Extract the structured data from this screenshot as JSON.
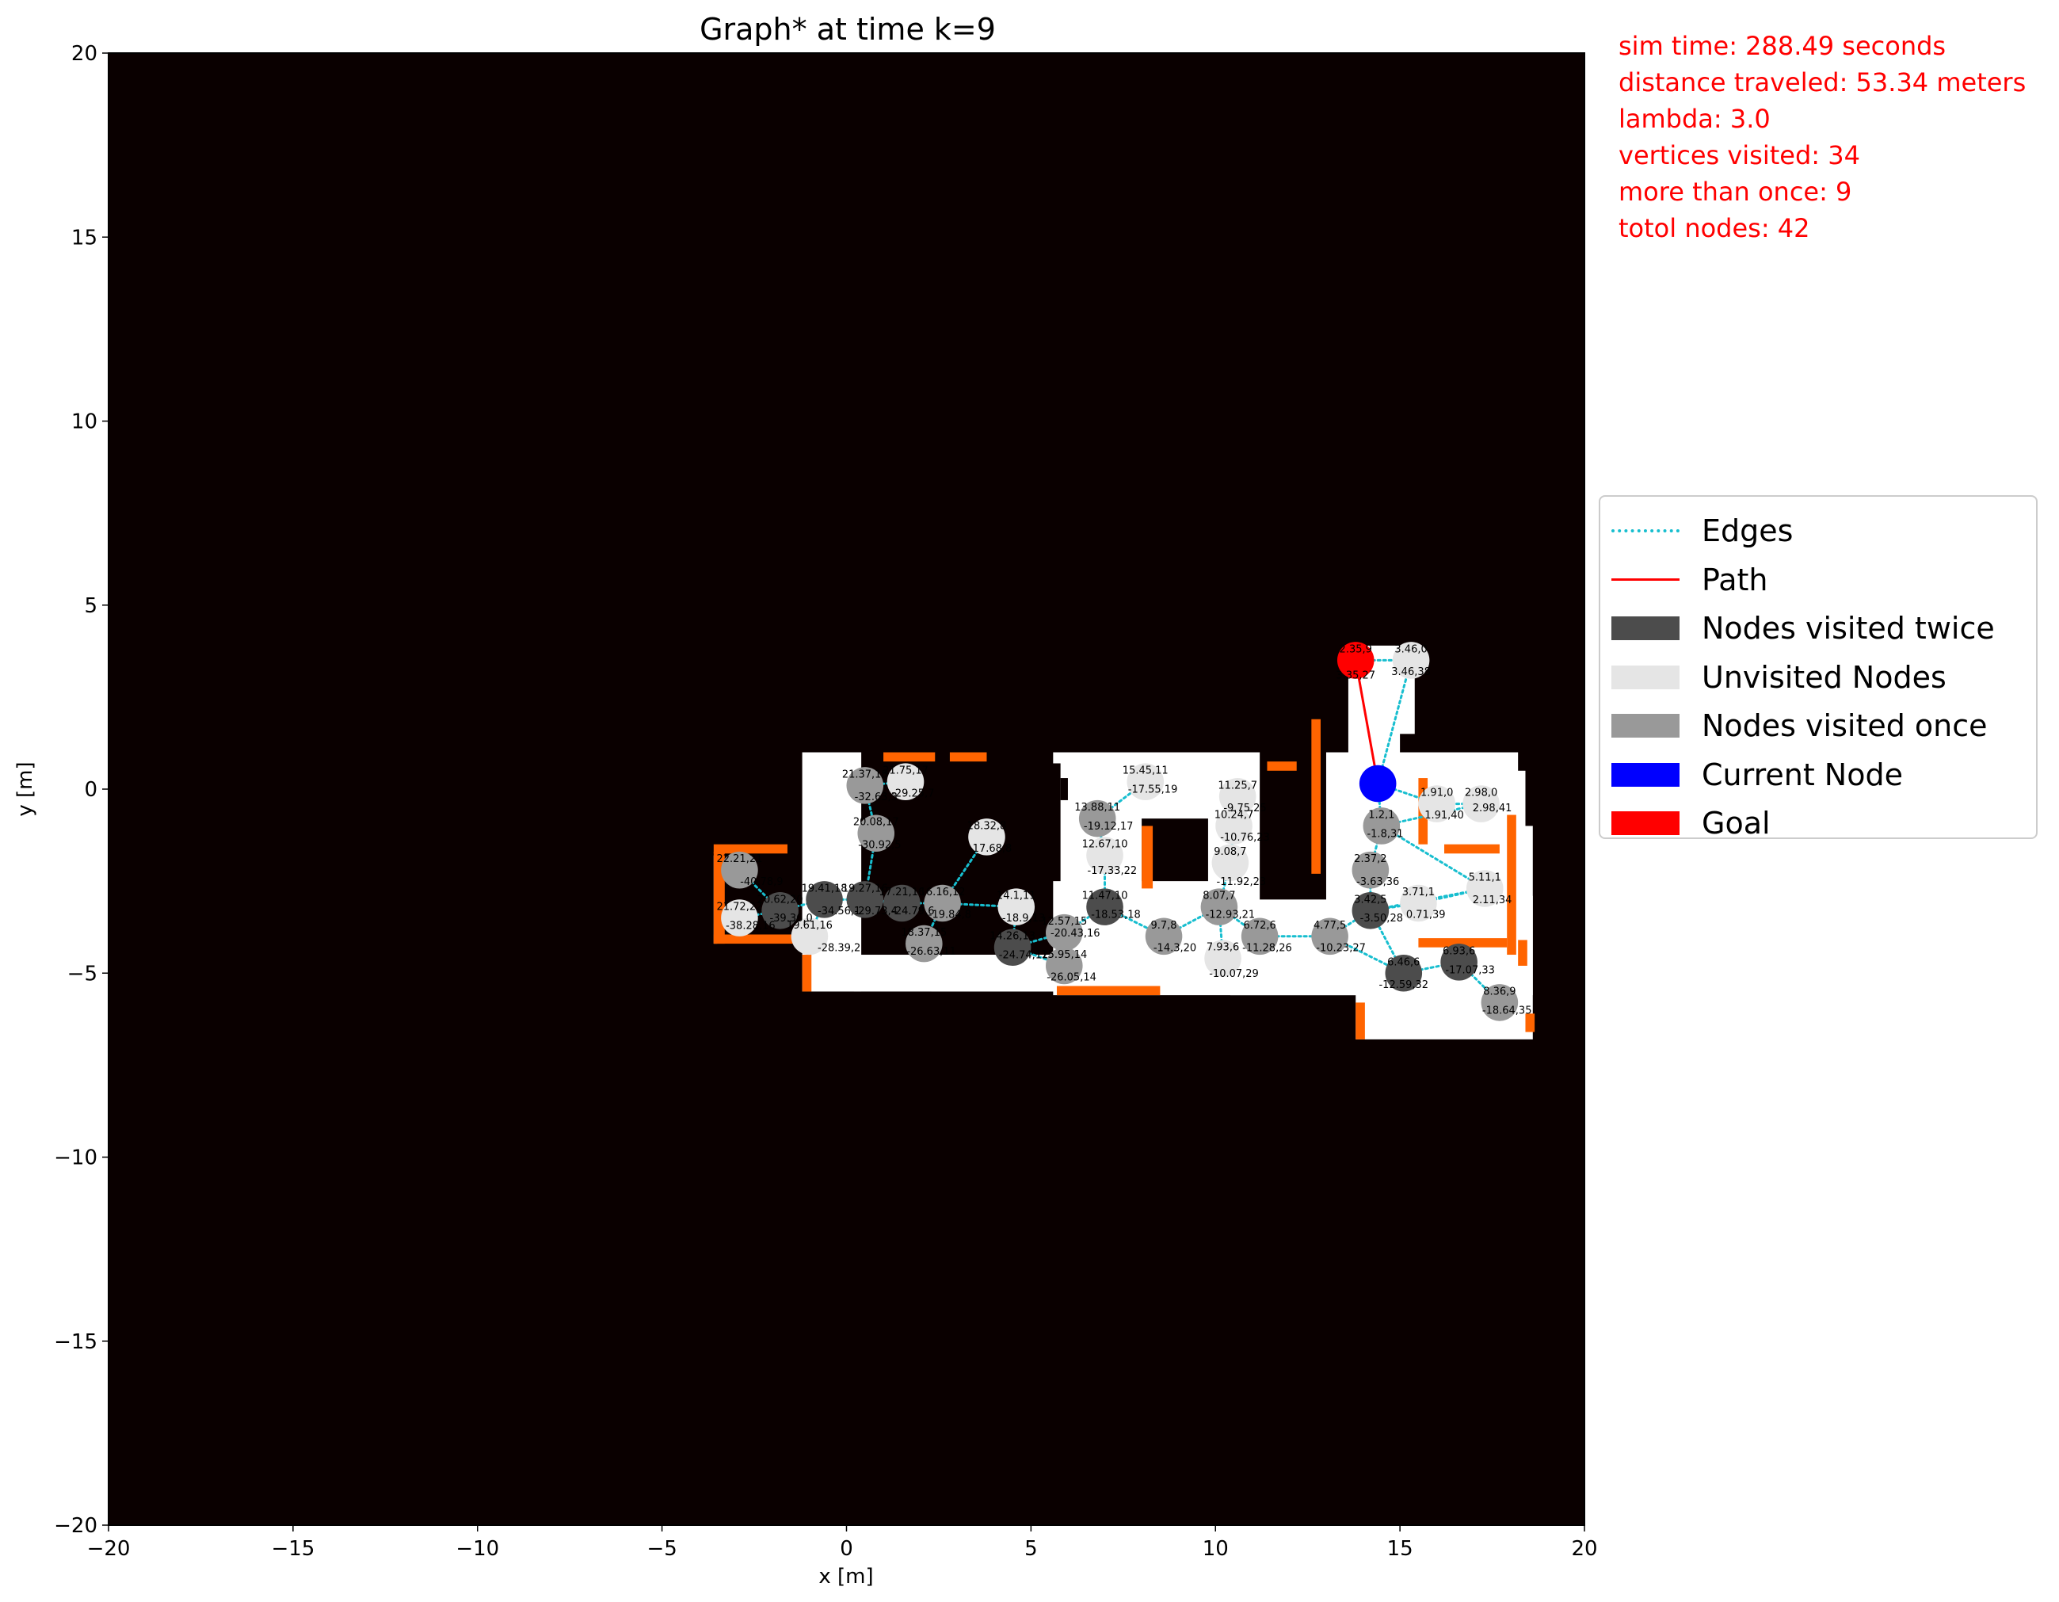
{
  "info": {
    "sim_time": "sim time: 288.49 seconds",
    "distance": "distance traveled: 53.34 meters",
    "lambda": "lambda: 3.0",
    "vertices_visited": "vertices visited: 34",
    "more_than_once": "more than once: 9",
    "total_nodes": "totol nodes: 42"
  },
  "colors": {
    "background": "#0a0000",
    "free_space": "#ffffff",
    "frontier": "#ff6400",
    "edge": "#17becf",
    "path": "#ff0000",
    "twice": "#4c4c4c",
    "unvisited": "#e5e5e5",
    "once": "#999999",
    "current": "#0000ff",
    "goal": "#ff0000"
  },
  "legend": [
    {
      "label": "Edges",
      "kind": "dotted",
      "color": "#17becf"
    },
    {
      "label": "Path",
      "kind": "line",
      "color": "#ff0000"
    },
    {
      "label": "Nodes visited twice",
      "kind": "patch",
      "color": "#4c4c4c"
    },
    {
      "label": "Unvisited Nodes",
      "kind": "patch",
      "color": "#e5e5e5"
    },
    {
      "label": "Nodes visited once",
      "kind": "patch",
      "color": "#999999"
    },
    {
      "label": "Current Node",
      "kind": "patch",
      "color": "#0000ff"
    },
    {
      "label": "Goal",
      "kind": "patch",
      "color": "#ff0000"
    }
  ],
  "chart_data": {
    "type": "scatter",
    "title": "Graph* at time k=9",
    "xlabel": "x [m]",
    "ylabel": "y [m]",
    "xlim": [
      -20,
      20
    ],
    "ylim": [
      -20,
      20
    ],
    "xticks": [
      "−20",
      "−15",
      "−10",
      "−5",
      "0",
      "5",
      "10",
      "15",
      "20"
    ],
    "yticks": [
      "20",
      "15",
      "10",
      "5",
      "0",
      "−5",
      "−10",
      "−15",
      "−20"
    ],
    "free_regions": [
      [
        -3.6,
        -4.2,
        0.1,
        2.4
      ],
      [
        -1.2,
        -5.5,
        1.6,
        6.5
      ],
      [
        0.2,
        -5.5,
        6.2,
        1.0
      ],
      [
        2.3,
        -5.5,
        4.2,
        1.0
      ],
      [
        5.6,
        -5.6,
        12.6,
        6.6
      ],
      [
        10.4,
        -5.6,
        5.6,
        5.2
      ],
      [
        13.8,
        -6.8,
        4.8,
        3.9
      ],
      [
        15.6,
        -5.6,
        3.0,
        4.6
      ],
      [
        13.6,
        -2.0,
        1.4,
        5.8
      ],
      [
        14.0,
        1.5,
        1.4,
        2.4
      ],
      [
        15.2,
        -1.5,
        3.2,
        2.0
      ],
      [
        16.5,
        -4.3,
        1.9,
        2.5
      ]
    ],
    "obstacles": [
      [
        2.0,
        -2.1,
        1.0,
        3.0
      ],
      [
        4.3,
        -2.5,
        1.5,
        3.2
      ],
      [
        8.0,
        -2.5,
        1.8,
        1.7
      ],
      [
        11.2,
        -3.0,
        1.8,
        4.2
      ],
      [
        5.8,
        -0.3,
        0.2,
        0.6
      ]
    ],
    "frontiers": [
      [
        -3.6,
        -4.2,
        0.3,
        2.5
      ],
      [
        -3.6,
        -1.75,
        2.0,
        0.25
      ],
      [
        -3.6,
        -4.2,
        2.5,
        0.25
      ],
      [
        -1.2,
        -5.5,
        0.25,
        1.0
      ],
      [
        1.0,
        0.75,
        1.4,
        0.25
      ],
      [
        2.8,
        0.75,
        1.0,
        0.25
      ],
      [
        5.7,
        -5.6,
        2.8,
        0.25
      ],
      [
        8.0,
        -2.7,
        0.3,
        1.7
      ],
      [
        11.4,
        0.5,
        0.8,
        0.25
      ],
      [
        12.6,
        -2.3,
        0.25,
        4.2
      ],
      [
        13.8,
        -6.8,
        0.25,
        1.0
      ],
      [
        15.5,
        -1.5,
        0.25,
        1.8
      ],
      [
        16.2,
        -1.75,
        1.5,
        0.25
      ],
      [
        17.9,
        -4.5,
        0.25,
        3.8
      ],
      [
        15.5,
        -4.3,
        2.4,
        0.25
      ],
      [
        18.4,
        -6.6,
        0.25,
        0.5
      ],
      [
        18.2,
        -4.8,
        0.25,
        0.7
      ]
    ],
    "nodes": [
      {
        "id": 0,
        "x": 17.2,
        "y": -0.4,
        "label": "2.98,0",
        "state": "unvisited"
      },
      {
        "id": 1,
        "x": 17.3,
        "y": -2.7,
        "label": "5.11,1",
        "state": "unvisited"
      },
      {
        "id": 2,
        "x": -1.0,
        "y": -4.0,
        "label": "19.61,16",
        "state": "unvisited"
      },
      {
        "id": 3,
        "x": -2.9,
        "y": -2.2,
        "label": "22.21,21",
        "state": "once"
      },
      {
        "id": 4,
        "x": -1.8,
        "y": -3.3,
        "label": "20.62,20",
        "state": "twice"
      },
      {
        "id": 5,
        "x": -2.9,
        "y": -3.5,
        "label": "21.72,22",
        "state": "unvisited"
      },
      {
        "id": 6,
        "x": -0.6,
        "y": -3.0,
        "label": "19.41,18",
        "state": "twice"
      },
      {
        "id": 7,
        "x": 0.5,
        "y": 0.1,
        "label": "21.37,18",
        "state": "once"
      },
      {
        "id": 8,
        "x": 1.6,
        "y": 0.2,
        "label": "21.75,17",
        "state": "unvisited"
      },
      {
        "id": 9,
        "x": 0.8,
        "y": -1.2,
        "label": "20.08,17",
        "state": "once"
      },
      {
        "id": 10,
        "x": 0.5,
        "y": -3.0,
        "label": "19.27,16",
        "state": "twice"
      },
      {
        "id": 11,
        "x": 1.5,
        "y": -3.1,
        "label": "17.21,16",
        "state": "twice"
      },
      {
        "id": 12,
        "x": 2.6,
        "y": -3.1,
        "label": "16.16,12",
        "state": "once"
      },
      {
        "id": 13,
        "x": 2.1,
        "y": -4.2,
        "label": "18.37,15",
        "state": "once"
      },
      {
        "id": 14,
        "x": 3.8,
        "y": -1.3,
        "label": "18.32,8",
        "state": "unvisited"
      },
      {
        "id": 15,
        "x": 4.6,
        "y": -3.2,
        "label": "14.1,11",
        "state": "unvisited"
      },
      {
        "id": 16,
        "x": 4.5,
        "y": -4.3,
        "label": "14.26,13",
        "state": "twice"
      },
      {
        "id": 17,
        "x": 5.9,
        "y": -4.8,
        "label": "15.95,14",
        "state": "once"
      },
      {
        "id": 18,
        "x": 5.9,
        "y": -3.9,
        "label": "12.57,15",
        "state": "once"
      },
      {
        "id": 19,
        "x": 7.0,
        "y": -3.2,
        "label": "11.47,10",
        "state": "twice"
      },
      {
        "id": 20,
        "x": 7.0,
        "y": -1.8,
        "label": "12.67,10",
        "state": "unvisited"
      },
      {
        "id": 21,
        "x": 6.8,
        "y": -0.8,
        "label": "13.88,11",
        "state": "once"
      },
      {
        "id": 22,
        "x": 8.1,
        "y": 0.2,
        "label": "15.45,11",
        "state": "unvisited"
      },
      {
        "id": 23,
        "x": 8.6,
        "y": -4.0,
        "label": "9.7,8",
        "state": "once"
      },
      {
        "id": 24,
        "x": 10.1,
        "y": -3.2,
        "label": "8.07,7",
        "state": "once"
      },
      {
        "id": 25,
        "x": 10.2,
        "y": -4.6,
        "label": "7.93,6",
        "state": "unvisited"
      },
      {
        "id": 26,
        "x": 10.6,
        "y": -0.2,
        "label": "11.25,7",
        "state": "unvisited"
      },
      {
        "id": 27,
        "x": 10.5,
        "y": -1.0,
        "label": "10.24,7",
        "state": "unvisited"
      },
      {
        "id": 28,
        "x": 10.4,
        "y": -2.0,
        "label": "9.08,7",
        "state": "unvisited"
      },
      {
        "id": 29,
        "x": 11.2,
        "y": -4.0,
        "label": "6.72,6",
        "state": "once"
      },
      {
        "id": 30,
        "x": 13.1,
        "y": -4.0,
        "label": "4.77,5",
        "state": "once"
      },
      {
        "id": 31,
        "x": 14.2,
        "y": -3.3,
        "label": "3.42,5",
        "state": "twice"
      },
      {
        "id": 32,
        "x": 14.2,
        "y": -2.2,
        "label": "2.37,2",
        "state": "once"
      },
      {
        "id": 33,
        "x": 14.5,
        "y": -1.0,
        "label": "1.2,1",
        "state": "once"
      },
      {
        "id": 34,
        "x": 14.4,
        "y": 0.15,
        "label": "",
        "state": "current"
      },
      {
        "id": 35,
        "x": 13.8,
        "y": 3.5,
        "label": "2.35,9",
        "state": "goal"
      },
      {
        "id": 36,
        "x": 15.3,
        "y": 3.5,
        "label": "3.46,0",
        "state": "unvisited"
      },
      {
        "id": 37,
        "x": 16.0,
        "y": -0.4,
        "label": "1.91,0",
        "state": "unvisited"
      },
      {
        "id": 38,
        "x": 15.5,
        "y": -3.1,
        "label": "3.71,1",
        "state": "unvisited"
      },
      {
        "id": 39,
        "x": 15.1,
        "y": -5.0,
        "label": "6.46,6",
        "state": "twice"
      },
      {
        "id": 40,
        "x": 16.6,
        "y": -4.7,
        "label": "6.93,6",
        "state": "twice"
      },
      {
        "id": 41,
        "x": 17.7,
        "y": -5.8,
        "label": "8.36,9",
        "state": "once"
      }
    ],
    "edges": [
      [
        0,
        33
      ],
      [
        0,
        37
      ],
      [
        1,
        33
      ],
      [
        1,
        38
      ],
      [
        1,
        31
      ],
      [
        2,
        6
      ],
      [
        3,
        4
      ],
      [
        4,
        5
      ],
      [
        4,
        6
      ],
      [
        6,
        10
      ],
      [
        6,
        2
      ],
      [
        7,
        8
      ],
      [
        7,
        9
      ],
      [
        9,
        10
      ],
      [
        10,
        11
      ],
      [
        11,
        12
      ],
      [
        12,
        13
      ],
      [
        12,
        14
      ],
      [
        12,
        15
      ],
      [
        15,
        16
      ],
      [
        16,
        17
      ],
      [
        16,
        18
      ],
      [
        18,
        19
      ],
      [
        19,
        20
      ],
      [
        20,
        21
      ],
      [
        21,
        22
      ],
      [
        19,
        23
      ],
      [
        23,
        24
      ],
      [
        24,
        25
      ],
      [
        24,
        28
      ],
      [
        28,
        27
      ],
      [
        27,
        26
      ],
      [
        24,
        29
      ],
      [
        29,
        30
      ],
      [
        30,
        31
      ],
      [
        31,
        32
      ],
      [
        32,
        33
      ],
      [
        33,
        34
      ],
      [
        34,
        36
      ],
      [
        35,
        36
      ],
      [
        31,
        38
      ],
      [
        30,
        39
      ],
      [
        39,
        40
      ],
      [
        40,
        41
      ],
      [
        39,
        31
      ],
      [
        34,
        37
      ],
      [
        11,
        10
      ]
    ],
    "path": [
      [
        14.4,
        0.15
      ],
      [
        13.8,
        3.5
      ]
    ],
    "extra_labels": [
      {
        "x": 0.8,
        "y": -0.3,
        "text": "-32.63,3"
      },
      {
        "x": 1.8,
        "y": -0.2,
        "text": "-29.25,7"
      },
      {
        "x": 0.9,
        "y": -1.6,
        "text": "-30.92,5"
      },
      {
        "x": -2.3,
        "y": -2.6,
        "text": "-40.78,9"
      },
      {
        "x": -2.6,
        "y": -3.8,
        "text": "-38.28,16"
      },
      {
        "x": -1.5,
        "y": -3.6,
        "text": "-39.36,0"
      },
      {
        "x": -0.2,
        "y": -3.4,
        "text": "-34.56,1"
      },
      {
        "x": 0.8,
        "y": -3.4,
        "text": "-29.73,4"
      },
      {
        "x": 1.8,
        "y": -3.4,
        "text": "-24.79,6"
      },
      {
        "x": 2.8,
        "y": -3.5,
        "text": "-19.84,8"
      },
      {
        "x": -0.2,
        "y": -4.4,
        "text": "-28.39,2"
      },
      {
        "x": 2.3,
        "y": -4.5,
        "text": "-26.63,11"
      },
      {
        "x": 3.9,
        "y": -1.7,
        "text": "-17.68,8"
      },
      {
        "x": 4.8,
        "y": -3.6,
        "text": "-18.9,13"
      },
      {
        "x": 4.8,
        "y": -4.6,
        "text": "-24.74,12"
      },
      {
        "x": 6.2,
        "y": -4.0,
        "text": "-20.43,16"
      },
      {
        "x": 6.1,
        "y": -5.2,
        "text": "-26.05,14"
      },
      {
        "x": 7.3,
        "y": -3.5,
        "text": "-18.53,18"
      },
      {
        "x": 7.2,
        "y": -2.3,
        "text": "-17.33,22"
      },
      {
        "x": 7.1,
        "y": -1.1,
        "text": "-19.12,17"
      },
      {
        "x": 8.3,
        "y": -0.1,
        "text": "-17.55,19"
      },
      {
        "x": 8.9,
        "y": -4.4,
        "text": "-14.3,20"
      },
      {
        "x": 10.4,
        "y": -3.5,
        "text": "-12.93,21"
      },
      {
        "x": 10.5,
        "y": -5.1,
        "text": "-10.07,29"
      },
      {
        "x": 10.8,
        "y": -0.6,
        "text": "-9.75,25"
      },
      {
        "x": 10.8,
        "y": -1.4,
        "text": "-10.76,23"
      },
      {
        "x": 10.7,
        "y": -2.6,
        "text": "-11.92,23"
      },
      {
        "x": 11.4,
        "y": -4.4,
        "text": "-11.28,26"
      },
      {
        "x": 13.4,
        "y": -4.4,
        "text": "-10.23,27"
      },
      {
        "x": 14.5,
        "y": -3.6,
        "text": "-3.50,28"
      },
      {
        "x": 14.4,
        "y": -2.6,
        "text": "-3.63,36"
      },
      {
        "x": 14.6,
        "y": -1.3,
        "text": "-1.8,31"
      },
      {
        "x": 13.8,
        "y": 3.0,
        "text": "3.35,27"
      },
      {
        "x": 15.3,
        "y": 3.1,
        "text": "3.46,38"
      },
      {
        "x": 16.2,
        "y": -0.8,
        "text": "1.91,40"
      },
      {
        "x": 17.5,
        "y": -0.6,
        "text": "2.98,41"
      },
      {
        "x": 17.5,
        "y": -3.1,
        "text": "2.11,34"
      },
      {
        "x": 15.7,
        "y": -3.5,
        "text": "0.71,39"
      },
      {
        "x": 15.1,
        "y": -5.4,
        "text": "-12.59,32"
      },
      {
        "x": 16.9,
        "y": -5.0,
        "text": "-17.07,33"
      },
      {
        "x": 17.9,
        "y": -6.1,
        "text": "-18.64,35"
      }
    ]
  }
}
